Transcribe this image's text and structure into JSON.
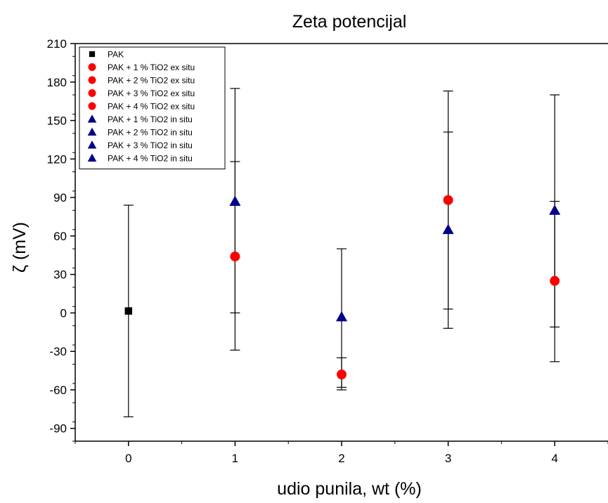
{
  "chart_data": {
    "type": "scatter",
    "title": "Zeta potencijal",
    "xlabel": "udio punila, wt (%)",
    "ylabel": "ζ (mV)",
    "xlim": [
      -0.5,
      4.5
    ],
    "ylim": [
      -100,
      210
    ],
    "xticks": [
      "0",
      "1",
      "2",
      "3",
      "4"
    ],
    "yticks": [
      "210",
      "180",
      "150",
      "120",
      "90",
      "60",
      "30",
      "0",
      "-30",
      "-60",
      "-90"
    ],
    "legend_position": "top-left",
    "series": [
      {
        "name": "PAK",
        "marker": "square",
        "color": "#000000",
        "points": [
          {
            "x": 0,
            "y": 1.5,
            "err_low": -81,
            "err_high": 84
          }
        ]
      },
      {
        "name": "PAK + 1 % TiO2 ex situ",
        "marker": "circle",
        "color": "#ff0000",
        "points": [
          {
            "x": 1,
            "y": 44,
            "err_low": 0,
            "err_high": 118
          }
        ]
      },
      {
        "name": "PAK + 2 % TiO2 ex situ",
        "marker": "circle",
        "color": "#ff0000",
        "points": [
          {
            "x": 2,
            "y": -48,
            "err_low": -58,
            "err_high": -35
          }
        ]
      },
      {
        "name": "PAK + 3 % TiO2 ex situ",
        "marker": "circle",
        "color": "#ff0000",
        "points": [
          {
            "x": 3,
            "y": 88,
            "err_low": 3,
            "err_high": 173
          }
        ]
      },
      {
        "name": "PAK + 4 % TiO2 ex situ",
        "marker": "circle",
        "color": "#ff0000",
        "points": [
          {
            "x": 4,
            "y": 25,
            "err_low": -11,
            "err_high": 87
          }
        ]
      },
      {
        "name": "PAK + 1 % TiO2 in situ",
        "marker": "triangle",
        "color": "#00008b",
        "points": [
          {
            "x": 1,
            "y": 87,
            "err_low": -29,
            "err_high": 175
          }
        ]
      },
      {
        "name": "PAK + 2 % TiO2 in situ",
        "marker": "triangle",
        "color": "#00008b",
        "points": [
          {
            "x": 2,
            "y": -3,
            "err_low": -60,
            "err_high": 50
          }
        ]
      },
      {
        "name": "PAK + 3 % TiO2 in situ",
        "marker": "triangle",
        "color": "#00008b",
        "points": [
          {
            "x": 3,
            "y": 65,
            "err_low": -12,
            "err_high": 141
          }
        ]
      },
      {
        "name": "PAK + 4 % TiO2 in situ",
        "marker": "triangle",
        "color": "#00008b",
        "points": [
          {
            "x": 4,
            "y": 80,
            "err_low": -38,
            "err_high": 170
          }
        ]
      }
    ]
  }
}
